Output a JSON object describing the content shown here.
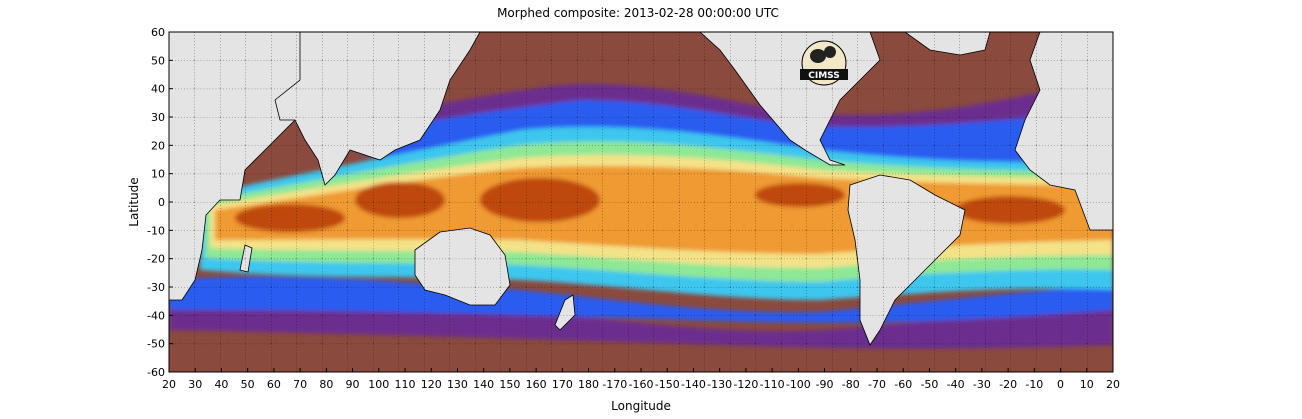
{
  "title": "Morphed composite: 2013-02-28 00:00:00 UTC",
  "xlabel": "Longitude",
  "ylabel": "Latitude",
  "x_ticks": [
    "20",
    "30",
    "40",
    "50",
    "60",
    "70",
    "80",
    "90",
    "100",
    "110",
    "120",
    "130",
    "140",
    "150",
    "160",
    "170",
    "180",
    "-170",
    "-160",
    "-150",
    "-140",
    "-130",
    "-120",
    "-110",
    "-100",
    "-90",
    "-80",
    "-70",
    "-60",
    "-50",
    "-40",
    "-30",
    "-20",
    "-10",
    "0",
    "10",
    "20"
  ],
  "y_ticks": [
    "60",
    "50",
    "40",
    "30",
    "20",
    "10",
    "0",
    "-10",
    "-20",
    "-30",
    "-40",
    "-50",
    "-60"
  ],
  "logo_text": "CIMSS",
  "colors": {
    "land": "#e4e4e4",
    "dry": "#8a4a3e",
    "purple": "#6c2d8e",
    "blue": "#2a5cf0",
    "cyan": "#3ec6ee",
    "green": "#8ee896",
    "yellow": "#f4e288",
    "orange": "#ef9a33",
    "dark_orange": "#bf4a08"
  }
}
